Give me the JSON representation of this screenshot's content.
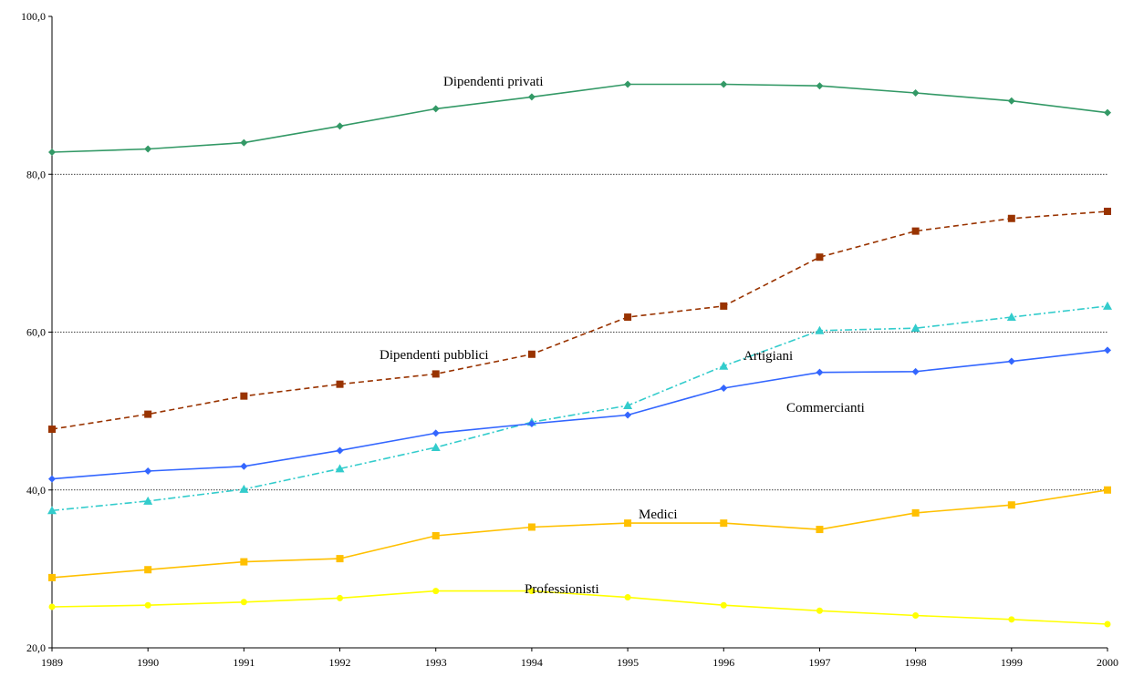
{
  "chart_data": {
    "type": "line",
    "x": [
      1989,
      1990,
      1991,
      1992,
      1993,
      1994,
      1995,
      1996,
      1997,
      1998,
      1999,
      2000
    ],
    "x_tick_labels": [
      "1989",
      "1990",
      "1991",
      "1992",
      "1993",
      "1994",
      "1995",
      "1996",
      "1997",
      "1998",
      "1999",
      "2000"
    ],
    "y_ticks": [
      20,
      40,
      60,
      80,
      100
    ],
    "y_tick_labels": [
      "20,0",
      "40,0",
      "60,0",
      "80,0",
      "100,0"
    ],
    "ylim": [
      20,
      100
    ],
    "grid": "horizontal dotted lines at 40, 60, 80",
    "legend": "none (series labeled inline)",
    "series": [
      {
        "name": "Dipendenti privati",
        "color": "#339966",
        "marker": "diamond",
        "line_style": "solid",
        "values": [
          82.8,
          83.2,
          84.0,
          86.1,
          88.3,
          89.8,
          91.4,
          91.4,
          91.2,
          90.3,
          89.3,
          87.8
        ]
      },
      {
        "name": "Dipendenti pubblici",
        "color": "#993300",
        "marker": "square",
        "line_style": "dashed",
        "values": [
          47.7,
          49.6,
          51.9,
          53.4,
          54.7,
          57.2,
          61.9,
          63.3,
          69.5,
          72.8,
          74.4,
          75.3
        ]
      },
      {
        "name": "Artigiani",
        "color": "#33CCCC",
        "marker": "triangle",
        "line_style": "dashdot",
        "values": [
          37.4,
          38.6,
          40.1,
          42.7,
          45.4,
          48.6,
          50.7,
          55.7,
          60.2,
          60.5,
          61.9,
          63.3
        ]
      },
      {
        "name": "Commercianti",
        "color": "#3366FF",
        "marker": "diamond",
        "line_style": "solid",
        "values": [
          41.4,
          42.4,
          43.0,
          45.0,
          47.2,
          48.4,
          49.5,
          52.9,
          54.9,
          55.0,
          56.3,
          57.7
        ]
      },
      {
        "name": "Medici",
        "color": "#FFC000",
        "marker": "square",
        "line_style": "solid",
        "values": [
          28.9,
          29.9,
          30.9,
          31.3,
          34.2,
          35.3,
          35.8,
          35.8,
          35.0,
          37.1,
          38.1,
          40.0
        ]
      },
      {
        "name": "Professionisti",
        "color": "#FFFF00",
        "marker": "circle",
        "line_style": "solid",
        "values": [
          25.2,
          25.4,
          25.8,
          26.3,
          27.2,
          27.2,
          26.4,
          25.4,
          24.7,
          24.1,
          23.6,
          23.0
        ]
      }
    ]
  }
}
